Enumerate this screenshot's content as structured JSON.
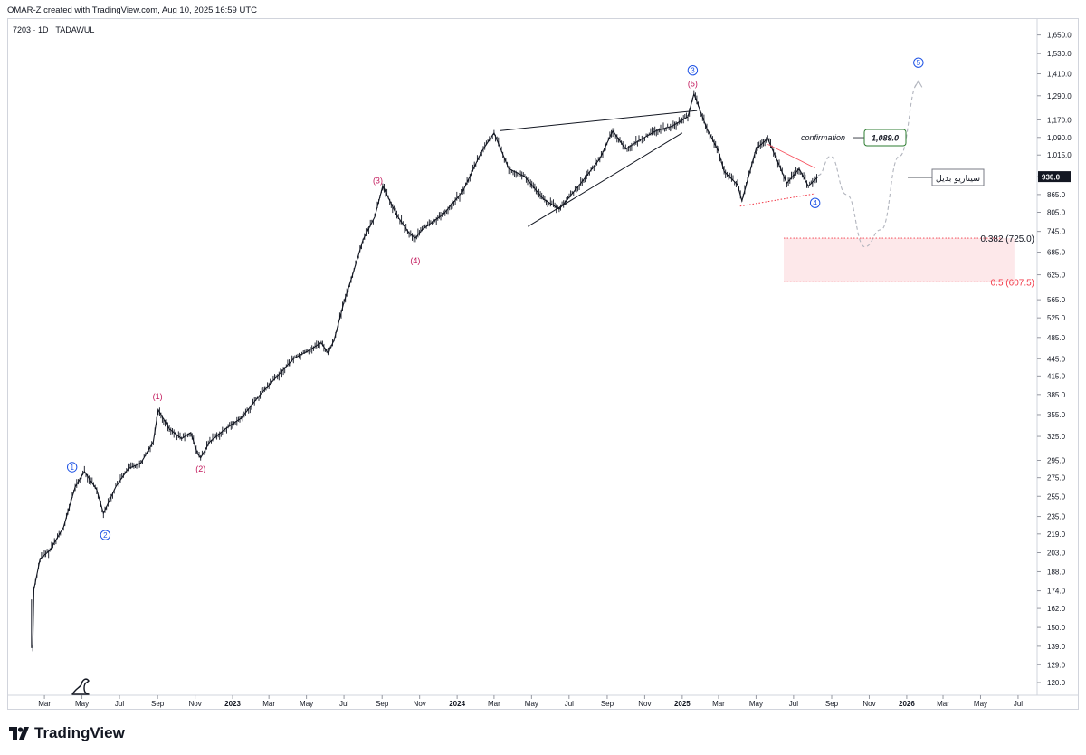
{
  "header": {
    "credit": "OMAR-Z created with TradingView.com, Aug 10, 2025 16:59 UTC"
  },
  "symbol": {
    "title": "7203 · 1D · TADAWUL"
  },
  "brand": {
    "name": "TradingView",
    "icon": "tradingview-logo-icon"
  },
  "colors": {
    "candle": "#131722",
    "wave_label_red": "#c2185b",
    "wave_label_blue": "#1e53e5",
    "zone": "#fde8ea",
    "fib_line": "#f23645",
    "grid_border": "#d1d4dc",
    "dashed_path": "#b2b5be"
  },
  "chart_data": {
    "type": "line",
    "yscale": "log",
    "ylim": [
      114,
      1760
    ],
    "y_ticks": [
      "1,650.0",
      "1,530.0",
      "1,410.0",
      "1,290.0",
      "1,170.0",
      "1,090.0",
      "1,015.0",
      "930.0",
      "865.0",
      "805.0",
      "745.0",
      "685.0",
      "625.0",
      "565.0",
      "525.0",
      "485.0",
      "445.0",
      "415.0",
      "385.0",
      "355.0",
      "325.0",
      "295.0",
      "275.0",
      "255.0",
      "235.0",
      "219.0",
      "203.0",
      "188.0",
      "174.0",
      "162.0",
      "150.0",
      "139.0",
      "129.0",
      "120.0"
    ],
    "x_ticks": [
      "Mar",
      "May",
      "Jul",
      "Sep",
      "Nov",
      "2023",
      "Mar",
      "May",
      "Jul",
      "Sep",
      "Nov",
      "2024",
      "Mar",
      "May",
      "Jul",
      "Sep",
      "Nov",
      "2025",
      "Mar",
      "May",
      "Jul",
      "Sep",
      "Nov",
      "2026",
      "Mar",
      "May",
      "Jul"
    ],
    "price_path": [
      [
        "2022-02-10",
        138
      ],
      [
        "2022-02-12",
        175
      ],
      [
        "2022-02-22",
        198
      ],
      [
        "2022-03-10",
        205
      ],
      [
        "2022-04-01",
        225
      ],
      [
        "2022-04-20",
        265
      ],
      [
        "2022-05-05",
        282
      ],
      [
        "2022-05-25",
        262
      ],
      [
        "2022-06-05",
        238
      ],
      [
        "2022-06-25",
        265
      ],
      [
        "2022-07-15",
        285
      ],
      [
        "2022-08-05",
        292
      ],
      [
        "2022-08-25",
        318
      ],
      [
        "2022-09-02",
        362
      ],
      [
        "2022-09-20",
        335
      ],
      [
        "2022-10-10",
        322
      ],
      [
        "2022-10-25",
        330
      ],
      [
        "2022-11-05",
        303
      ],
      [
        "2022-11-10",
        298
      ],
      [
        "2022-11-25",
        318
      ],
      [
        "2022-12-20",
        335
      ],
      [
        "2023-01-15",
        350
      ],
      [
        "2023-02-15",
        385
      ],
      [
        "2023-03-15",
        415
      ],
      [
        "2023-04-10",
        445
      ],
      [
        "2023-05-05",
        460
      ],
      [
        "2023-05-25",
        475
      ],
      [
        "2023-06-05",
        455
      ],
      [
        "2023-06-15",
        480
      ],
      [
        "2023-07-01",
        560
      ],
      [
        "2023-07-15",
        625
      ],
      [
        "2023-08-01",
        720
      ],
      [
        "2023-08-20",
        790
      ],
      [
        "2023-09-02",
        895
      ],
      [
        "2023-09-25",
        795
      ],
      [
        "2023-10-15",
        740
      ],
      [
        "2023-10-25",
        725
      ],
      [
        "2023-11-05",
        750
      ],
      [
        "2023-12-10",
        800
      ],
      [
        "2024-01-10",
        875
      ],
      [
        "2024-02-10",
        1030
      ],
      [
        "2024-03-01",
        1110
      ],
      [
        "2024-03-25",
        960
      ],
      [
        "2024-04-20",
        930
      ],
      [
        "2024-05-20",
        850
      ],
      [
        "2024-06-15",
        815
      ],
      [
        "2024-07-20",
        905
      ],
      [
        "2024-08-20",
        1000
      ],
      [
        "2024-09-10",
        1120
      ],
      [
        "2024-10-01",
        1040
      ],
      [
        "2024-10-25",
        1080
      ],
      [
        "2024-11-20",
        1120
      ],
      [
        "2024-12-15",
        1140
      ],
      [
        "2025-01-10",
        1185
      ],
      [
        "2025-01-20",
        1300
      ],
      [
        "2025-02-10",
        1130
      ],
      [
        "2025-03-01",
        1030
      ],
      [
        "2025-03-10",
        950
      ],
      [
        "2025-04-01",
        900
      ],
      [
        "2025-04-08",
        843
      ],
      [
        "2025-05-01",
        1040
      ],
      [
        "2025-05-20",
        1085
      ],
      [
        "2025-06-10",
        960
      ],
      [
        "2025-06-20",
        905
      ],
      [
        "2025-07-10",
        960
      ],
      [
        "2025-07-25",
        895
      ],
      [
        "2025-08-10",
        930
      ]
    ],
    "scenario_path": [
      [
        "2025-08-10",
        935
      ],
      [
        "2025-08-30",
        1010
      ],
      [
        "2025-09-25",
        865
      ],
      [
        "2025-10-25",
        700
      ],
      [
        "2025-11-20",
        750
      ],
      [
        "2025-12-20",
        1010
      ],
      [
        "2026-01-20",
        1360
      ]
    ],
    "trendlines": [
      {
        "from": [
          "2024-03-10",
          1120
        ],
        "to": [
          "2025-01-25",
          1215
        ]
      },
      {
        "from": [
          "2024-04-25",
          760
        ],
        "to": [
          "2025-01-01",
          1110
        ]
      },
      {
        "from": [
          "2025-04-05",
          825
        ],
        "to": [
          "2025-08-05",
          868
        ]
      },
      {
        "from": [
          "2025-05-20",
          1060
        ],
        "to": [
          "2025-08-05",
          963
        ]
      }
    ],
    "wave_labels": [
      {
        "text": "1",
        "style": "circled-blue",
        "x": "2022-04-15",
        "y": 287
      },
      {
        "text": "2",
        "style": "circled-blue",
        "x": "2022-06-08",
        "y": 218
      },
      {
        "text": "(1)",
        "style": "red",
        "x": "2022-09-01",
        "y": 382
      },
      {
        "text": "(2)",
        "style": "red",
        "x": "2022-11-10",
        "y": 285
      },
      {
        "text": "(3)",
        "style": "red",
        "x": "2023-08-25",
        "y": 915
      },
      {
        "text": "(4)",
        "style": "red",
        "x": "2023-10-25",
        "y": 662
      },
      {
        "text": "(5)",
        "style": "red",
        "x": "2025-01-18",
        "y": 1355
      },
      {
        "text": "3",
        "style": "circled-blue",
        "x": "2025-01-18",
        "y": 1430
      },
      {
        "text": "4",
        "style": "circled-blue",
        "x": "2025-08-05",
        "y": 836
      },
      {
        "text": "5",
        "style": "circled-blue",
        "x": "2026-01-20",
        "y": 1475
      }
    ],
    "annotations": [
      {
        "text": "confirmation",
        "price_label": "1,089.0",
        "price": 1089
      },
      {
        "text": "سيناريو بديل"
      }
    ],
    "fib_levels": [
      {
        "label": "0.382 (725.0)",
        "value": 725.0
      },
      {
        "label": "0.5 (607.5)",
        "value": 607.5
      }
    ],
    "last_price": "930.0"
  }
}
